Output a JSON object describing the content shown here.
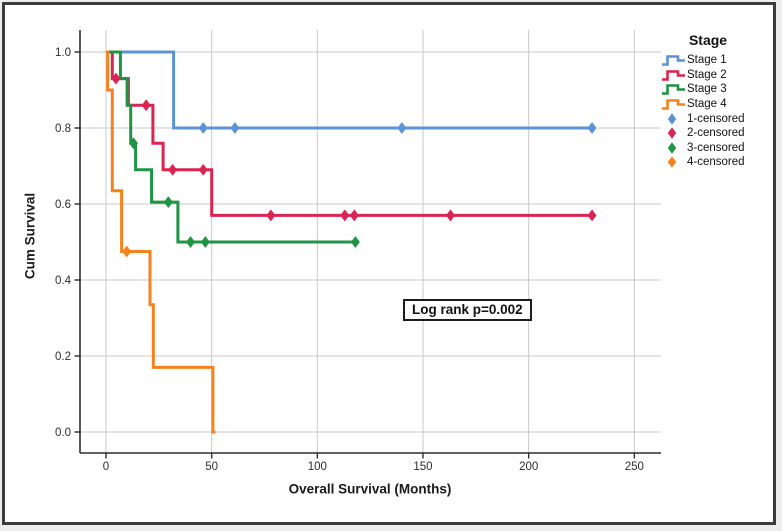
{
  "chart_data": {
    "type": "line",
    "subtype": "kaplan-meier-step",
    "title": "",
    "xlabel": "Overall Survival (Months)",
    "ylabel": "Cum Survival",
    "xlim": [
      -12,
      263
    ],
    "ylim": [
      -0.06,
      1.06
    ],
    "x_ticks": [
      0,
      50,
      100,
      150,
      200,
      250
    ],
    "y_ticks": [
      "0.0",
      "0.2",
      "0.4",
      "0.6",
      "0.8",
      "1.0"
    ],
    "grid": true,
    "legend_position": "right",
    "annotation": {
      "text": "Log rank p=0.002",
      "x_months": 173,
      "y_survival": 0.32
    },
    "style": {
      "grid_color": "#c9c9c9",
      "axis_color": "#2d2d2d",
      "tick_label_color": "#2d2d2d",
      "curve_width": 3
    },
    "series": [
      {
        "name": "Stage 1",
        "color": "#5C93D8",
        "steps": [
          [
            0,
            1.0
          ],
          [
            32,
            1.0
          ],
          [
            32,
            0.8
          ],
          [
            230,
            0.8
          ]
        ],
        "censored": [
          [
            46,
            0.8
          ],
          [
            61,
            0.8
          ],
          [
            140,
            0.8
          ],
          [
            230,
            0.8
          ]
        ]
      },
      {
        "name": "Stage 2",
        "color": "#DA2451",
        "steps": [
          [
            0,
            1.0
          ],
          [
            3,
            1.0
          ],
          [
            3,
            0.93
          ],
          [
            10.6,
            0.93
          ],
          [
            10.6,
            0.86
          ],
          [
            22.2,
            0.86
          ],
          [
            22.2,
            0.76
          ],
          [
            27,
            0.76
          ],
          [
            27,
            0.69
          ],
          [
            50,
            0.69
          ],
          [
            50,
            0.57
          ],
          [
            230,
            0.57
          ]
        ],
        "censored": [
          [
            4.7,
            0.93
          ],
          [
            19,
            0.86
          ],
          [
            31.5,
            0.69
          ],
          [
            46,
            0.69
          ],
          [
            78,
            0.57
          ],
          [
            113,
            0.57
          ],
          [
            117.5,
            0.57
          ],
          [
            163,
            0.57
          ],
          [
            230,
            0.57
          ]
        ]
      },
      {
        "name": "Stage 3",
        "color": "#1F9444",
        "steps": [
          [
            0,
            1.0
          ],
          [
            6.8,
            1.0
          ],
          [
            6.8,
            0.93
          ],
          [
            10,
            0.93
          ],
          [
            10,
            0.86
          ],
          [
            11.7,
            0.86
          ],
          [
            11.7,
            0.76
          ],
          [
            14,
            0.76
          ],
          [
            14,
            0.69
          ],
          [
            21.6,
            0.69
          ],
          [
            21.6,
            0.605
          ],
          [
            34,
            0.605
          ],
          [
            34,
            0.5
          ],
          [
            118,
            0.5
          ]
        ],
        "censored": [
          [
            13,
            0.76
          ],
          [
            29.5,
            0.605
          ],
          [
            40,
            0.5
          ],
          [
            47,
            0.5
          ],
          [
            118,
            0.5
          ]
        ]
      },
      {
        "name": "Stage 4",
        "color": "#F6821C",
        "steps": [
          [
            0,
            1.0
          ],
          [
            0.8,
            1.0
          ],
          [
            0.8,
            0.9
          ],
          [
            3,
            0.9
          ],
          [
            3,
            0.635
          ],
          [
            7.4,
            0.635
          ],
          [
            7.4,
            0.475
          ],
          [
            20.8,
            0.475
          ],
          [
            20.8,
            0.335
          ],
          [
            22.4,
            0.335
          ],
          [
            22.4,
            0.17
          ],
          [
            50.6,
            0.17
          ],
          [
            50.6,
            0.0
          ],
          [
            51.8,
            0.0
          ]
        ],
        "censored": [
          [
            9.8,
            0.475
          ]
        ]
      }
    ]
  },
  "legend": {
    "title": "Stage",
    "line_items": [
      {
        "label": "Stage 1",
        "color": "#5C93D8"
      },
      {
        "label": "Stage 2",
        "color": "#DA2451"
      },
      {
        "label": "Stage 3",
        "color": "#1F9444"
      },
      {
        "label": "Stage 4",
        "color": "#F6821C"
      }
    ],
    "censor_items": [
      {
        "label": "1-censored",
        "color": "#5C93D8"
      },
      {
        "label": "2-censored",
        "color": "#DA2451"
      },
      {
        "label": "3-censored",
        "color": "#1F9444"
      },
      {
        "label": "4-censored",
        "color": "#F6821C"
      }
    ]
  }
}
